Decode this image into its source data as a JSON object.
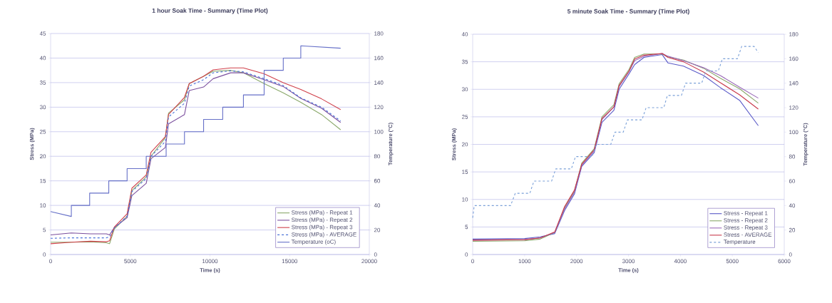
{
  "chart_data": [
    {
      "type": "line",
      "title": "1 hour Soak Time - Summary (Time Plot)",
      "xlabel": "Time (s)",
      "ylabel": "Stress (MPa)",
      "y2label": "Temperature (°C)",
      "xlim": [
        0,
        20000
      ],
      "xticks": [
        0,
        5000,
        10000,
        15000,
        20000
      ],
      "ylim": [
        0,
        45
      ],
      "yticks": [
        0,
        5,
        10,
        15,
        20,
        25,
        30,
        35,
        40,
        45
      ],
      "y2lim": [
        0,
        180
      ],
      "y2ticks": [
        0,
        20,
        40,
        60,
        80,
        100,
        120,
        140,
        160,
        180
      ],
      "grid": "y",
      "legend": "bottom right",
      "marker": "none",
      "series": [
        {
          "name": "Stress (MPa) - Repeat 1",
          "color": "#8aa86a",
          "x": [
            0,
            1300,
            2500,
            3500,
            3700,
            4000,
            4800,
            5100,
            6000,
            6300,
            7200,
            7400,
            8400,
            8700,
            9600,
            10200,
            11300,
            12100,
            13400,
            14600,
            15700,
            17000,
            18200
          ],
          "values": [
            2.5,
            2.5,
            2.6,
            2.4,
            2.2,
            5.2,
            7.8,
            13,
            15.8,
            20,
            23.8,
            28.8,
            31.5,
            34.8,
            36.3,
            37.3,
            37.5,
            37,
            34.8,
            32.9,
            31,
            28.5,
            25.4
          ]
        },
        {
          "name": "Stress (MPa) - Repeat 2",
          "color": "#7b4f9e",
          "x": [
            0,
            1300,
            2500,
            3500,
            3700,
            4000,
            4800,
            5100,
            6000,
            6300,
            7200,
            7400,
            8400,
            8700,
            9600,
            10200,
            11300,
            12100,
            13400,
            14600,
            15700,
            17000,
            18200
          ],
          "values": [
            4.0,
            4.4,
            4.2,
            4.2,
            4.0,
            5.5,
            7.5,
            12,
            14.5,
            19.5,
            21.8,
            26.6,
            28.5,
            33.4,
            34.1,
            35.8,
            37,
            37,
            35.6,
            34.2,
            31.8,
            29.8,
            26.9
          ]
        },
        {
          "name": "Stress (MPa) - Repeat 3",
          "color": "#d0404a",
          "x": [
            0,
            1300,
            2500,
            3500,
            3700,
            4000,
            4800,
            5100,
            6000,
            6300,
            7200,
            7400,
            8400,
            8700,
            9600,
            10200,
            11300,
            12100,
            13400,
            14600,
            15700,
            17000,
            18200
          ],
          "values": [
            2.2,
            2.5,
            2.7,
            2.6,
            2.8,
            5.6,
            8.3,
            13.5,
            16.2,
            20.8,
            24,
            28.5,
            32,
            34.8,
            36.3,
            37.6,
            38,
            38,
            36.8,
            35,
            33.6,
            31.7,
            29.5
          ]
        },
        {
          "name": "Stress (MPa) - AVERAGE",
          "color": "#4a72d8",
          "line_style": "dashed",
          "x": [
            0,
            1300,
            2500,
            3500,
            3700,
            4000,
            4800,
            5100,
            6000,
            6300,
            7200,
            7400,
            8400,
            8700,
            9600,
            10200,
            11300,
            12100,
            13400,
            14600,
            15700,
            17000,
            18200
          ],
          "values": [
            3.3,
            3.4,
            3.4,
            3.4,
            3.6,
            5.4,
            7.8,
            12.8,
            15.5,
            20,
            23,
            28,
            30.8,
            34.3,
            35.6,
            37,
            37.4,
            37.2,
            35.8,
            34.4,
            31.9,
            30,
            27.2
          ]
        },
        {
          "name": "Temperature (oC)",
          "color": "#6670c8",
          "axis": "y2",
          "x": [
            0,
            1300,
            1300,
            2450,
            2450,
            3650,
            3650,
            4800,
            4800,
            6000,
            6000,
            7250,
            7250,
            8400,
            8400,
            9600,
            9600,
            10800,
            10800,
            12100,
            12100,
            13400,
            13400,
            14600,
            14600,
            15700,
            15700,
            18200
          ],
          "values": [
            35,
            31,
            40,
            40,
            50,
            50,
            60,
            60,
            70,
            70,
            80,
            80,
            90,
            90,
            100,
            100,
            110,
            110,
            120,
            120,
            130,
            130,
            150,
            150,
            160,
            160,
            170,
            168
          ]
        }
      ]
    },
    {
      "type": "line",
      "title": "5 minute Soak Time - Summary (Time Plot)",
      "xlabel": "Time (s)",
      "ylabel": "Stress (MPa)",
      "y2label": "Temperature (°C)",
      "xlim": [
        0,
        6000
      ],
      "xticks": [
        0,
        1000,
        2000,
        3000,
        4000,
        5000,
        6000
      ],
      "ylim": [
        0,
        40
      ],
      "yticks": [
        0,
        5,
        10,
        15,
        20,
        25,
        30,
        35,
        40
      ],
      "y2lim": [
        0,
        180
      ],
      "y2ticks": [
        0,
        20,
        40,
        60,
        80,
        100,
        120,
        140,
        160,
        180
      ],
      "grid": "y",
      "legend": "bottom right",
      "marker": "none",
      "series": [
        {
          "name": "Stress - Repeat 1",
          "color": "#5a5ac8",
          "x": [
            0,
            1000,
            1300,
            1580,
            1770,
            1960,
            2100,
            2340,
            2490,
            2720,
            2820,
            3010,
            3120,
            3300,
            3650,
            3760,
            4060,
            4450,
            4770,
            5140,
            5500
          ],
          "values": [
            2.8,
            2.9,
            3.2,
            3.8,
            8,
            11,
            16,
            18.5,
            24,
            26.2,
            30,
            32.8,
            34.5,
            35.8,
            36.3,
            34.8,
            34.2,
            32.5,
            30.3,
            28,
            23.4
          ]
        },
        {
          "name": "Stress - Repeat 2",
          "color": "#8aa86a",
          "x": [
            0,
            1000,
            1300,
            1580,
            1770,
            1960,
            2100,
            2340,
            2490,
            2720,
            2820,
            3010,
            3120,
            3300,
            3650,
            3760,
            4060,
            4450,
            4770,
            5140,
            5500
          ],
          "values": [
            2.4,
            2.5,
            2.8,
            4.0,
            8.5,
            11.5,
            16.6,
            19.2,
            25,
            27.2,
            31,
            33.6,
            35.8,
            36.4,
            36.4,
            35.9,
            35.3,
            33.8,
            32,
            30.1,
            27.5
          ]
        },
        {
          "name": "Stress - Repeat 3",
          "color": "#9a6ab8",
          "x": [
            0,
            1000,
            1300,
            1580,
            1770,
            1960,
            2100,
            2340,
            2490,
            2720,
            2820,
            3010,
            3120,
            3300,
            3650,
            3760,
            4060,
            4450,
            4770,
            5140,
            5500
          ],
          "values": [
            2.6,
            2.7,
            3.0,
            4.0,
            8.3,
            11.3,
            16.2,
            18.8,
            24.5,
            26.8,
            30.5,
            33.2,
            35.2,
            36,
            36.5,
            36,
            35.2,
            33.9,
            32.5,
            30.4,
            28.4
          ]
        },
        {
          "name": "Stress - AVERAGE",
          "color": "#c8384a",
          "x": [
            0,
            1000,
            1300,
            1580,
            1770,
            1960,
            2100,
            2340,
            2490,
            2720,
            2820,
            3010,
            3120,
            3300,
            3650,
            3760,
            4060,
            4450,
            4770,
            5140,
            5500
          ],
          "values": [
            2.6,
            2.7,
            3.0,
            4.1,
            8.7,
            11.7,
            16.4,
            19,
            24.7,
            26.8,
            30.7,
            33.3,
            35.5,
            36.2,
            36.5,
            35.8,
            35,
            33.1,
            31.2,
            29,
            26.4
          ]
        },
        {
          "name": "Temperature",
          "color": "#7aa0d8",
          "axis": "y2",
          "line_style": "dashed",
          "x": [
            0,
            30,
            730,
            820,
            1100,
            1180,
            1520,
            1600,
            1900,
            1980,
            2300,
            2380,
            2660,
            2740,
            2900,
            2980,
            3260,
            3340,
            3680,
            3750,
            4020,
            4100,
            4410,
            4490,
            4730,
            4810,
            5100,
            5180,
            5420,
            5500
          ],
          "values": [
            30,
            40,
            40,
            50,
            50,
            60,
            60,
            70,
            70,
            80,
            80,
            90,
            90,
            100,
            100,
            110,
            110,
            120,
            120,
            130,
            130,
            140,
            140,
            150,
            150,
            160,
            160,
            170,
            170,
            165
          ]
        }
      ]
    }
  ]
}
